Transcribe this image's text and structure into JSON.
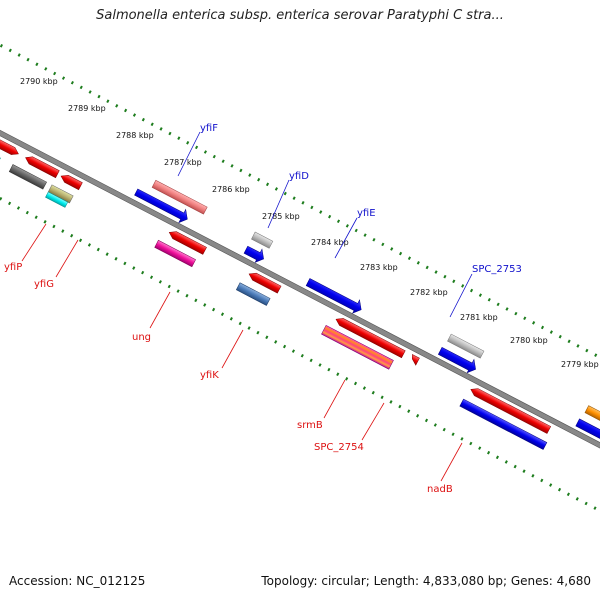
{
  "title": "Salmonella enterica subsp. enterica serovar Paratyphi C stra...",
  "footer": {
    "accession": "Accession: NC_012125",
    "topology": "Topology: circular; Length: 4,833,080 bp; Genes: 4,680"
  },
  "colors": {
    "backbone": "#808080",
    "tick": "#1e7d1e",
    "forward_label": "#1010cc",
    "reverse_label": "#dd1111"
  },
  "ruler_labels": [
    "2790 kbp",
    "2789 kbp",
    "2788 kbp",
    "2787 kbp",
    "2786 kbp",
    "2785 kbp",
    "2784 kbp",
    "2783 kbp",
    "2782 kbp",
    "2781 kbp",
    "2780 kbp",
    "2779 kbp"
  ],
  "forward_genes": [
    "yfiF",
    "yfiD",
    "yfiE",
    "SPC_2753"
  ],
  "reverse_genes": [
    "yfiP",
    "yfiG",
    "ung",
    "yfiK",
    "srmB",
    "SPC_2754",
    "nadB"
  ]
}
